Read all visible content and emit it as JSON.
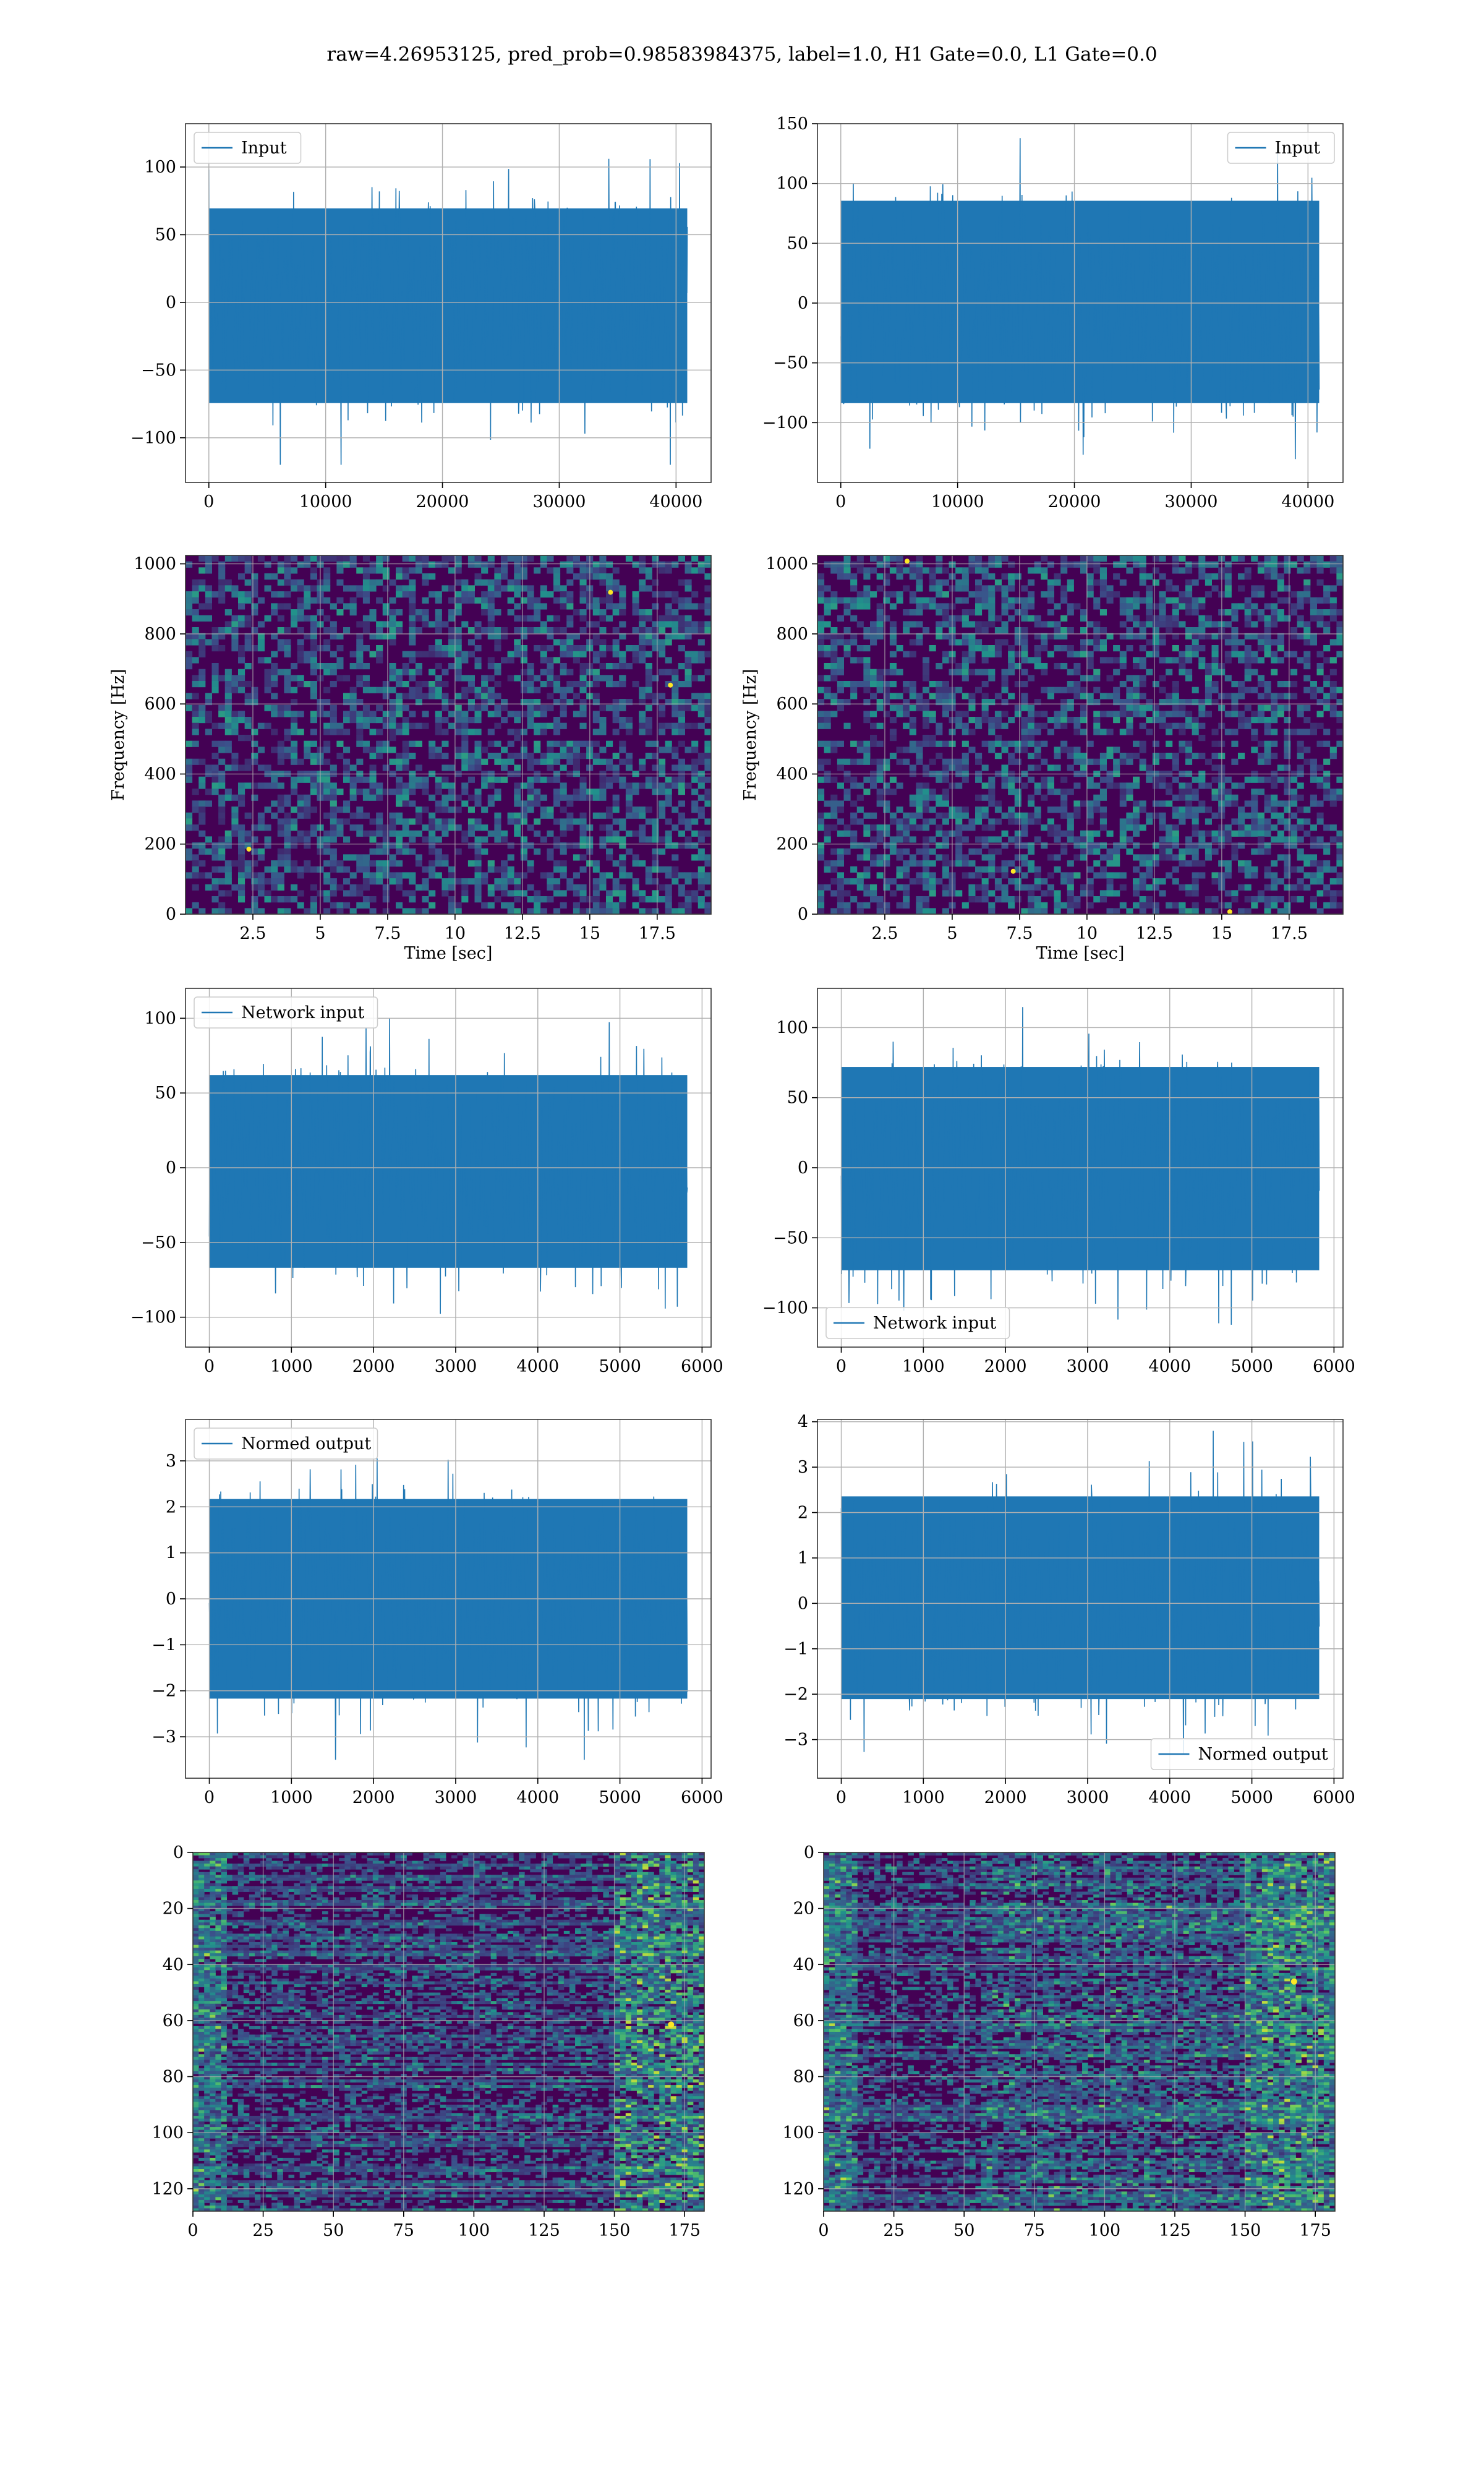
{
  "figure": {
    "title": "raw=4.26953125, pred_prob=0.98583984375, label=1.0, H1 Gate=0.0, L1 Gate=0.0"
  },
  "colors": {
    "series": "#1f77b4",
    "grid": "#b0b0b0",
    "viridis_low": "#440154",
    "viridis_mid": "#21918c",
    "viridis_high": "#fde725"
  },
  "chart_data": [
    {
      "id": "input-h1",
      "type": "line",
      "row": 0,
      "col": 0,
      "series": [
        {
          "name": "Input",
          "x_range": [
            0,
            40960
          ],
          "y_range": [
            -120,
            112
          ]
        }
      ],
      "xlim": [
        -2000,
        43000
      ],
      "ylim": [
        -133,
        132
      ],
      "xticks": [
        0,
        10000,
        20000,
        30000,
        40000
      ],
      "yticks": [
        -100,
        -50,
        0,
        50,
        100
      ],
      "xlabel": "",
      "ylabel": "",
      "legend": "upper left",
      "grid": true
    },
    {
      "id": "input-l1",
      "type": "line",
      "row": 0,
      "col": 1,
      "series": [
        {
          "name": "Input",
          "x_range": [
            0,
            40960
          ],
          "y_range": [
            -135,
            138
          ]
        }
      ],
      "xlim": [
        -2000,
        43000
      ],
      "ylim": [
        -150,
        150
      ],
      "xticks": [
        0,
        10000,
        20000,
        30000,
        40000
      ],
      "yticks": [
        -100,
        -50,
        0,
        50,
        100,
        150
      ],
      "xlabel": "",
      "ylabel": "",
      "legend": "upper right",
      "grid": true
    },
    {
      "id": "spec-h1",
      "type": "heatmap",
      "row": 1,
      "col": 0,
      "xlim": [
        0,
        19.5
      ],
      "ylim": [
        0,
        1024
      ],
      "xticks": [
        2.5,
        5.0,
        7.5,
        10.0,
        12.5,
        15.0,
        17.5
      ],
      "yticks": [
        0,
        200,
        400,
        600,
        800,
        1000
      ],
      "xlabel": "Time [sec]",
      "ylabel": "Frequency [Hz]",
      "colormap": "viridis",
      "grid": true
    },
    {
      "id": "spec-l1",
      "type": "heatmap",
      "row": 1,
      "col": 1,
      "xlim": [
        0,
        19.5
      ],
      "ylim": [
        0,
        1024
      ],
      "xticks": [
        2.5,
        5.0,
        7.5,
        10.0,
        12.5,
        15.0,
        17.5
      ],
      "yticks": [
        0,
        200,
        400,
        600,
        800,
        1000
      ],
      "xlabel": "Time [sec]",
      "ylabel": "Frequency [Hz]",
      "colormap": "viridis",
      "grid": true
    },
    {
      "id": "netin-h1",
      "type": "line",
      "row": 2,
      "col": 0,
      "series": [
        {
          "name": "Network input",
          "x_range": [
            0,
            5820
          ],
          "y_range": [
            -108,
            100
          ]
        }
      ],
      "xlim": [
        -290,
        6110
      ],
      "ylim": [
        -120,
        120
      ],
      "xticks": [
        0,
        1000,
        2000,
        3000,
        4000,
        5000,
        6000
      ],
      "yticks": [
        -100,
        -50,
        0,
        50,
        100
      ],
      "xlabel": "",
      "ylabel": "",
      "legend": "upper left",
      "grid": true
    },
    {
      "id": "netin-l1",
      "type": "line",
      "row": 2,
      "col": 1,
      "series": [
        {
          "name": "Network input",
          "x_range": [
            0,
            5820
          ],
          "y_range": [
            -118,
            116
          ]
        }
      ],
      "xlim": [
        -290,
        6110
      ],
      "ylim": [
        -128,
        128
      ],
      "xticks": [
        0,
        1000,
        2000,
        3000,
        4000,
        5000,
        6000
      ],
      "yticks": [
        -100,
        -50,
        0,
        50,
        100
      ],
      "xlabel": "",
      "ylabel": "",
      "legend": "lower left",
      "grid": true
    },
    {
      "id": "normout-h1",
      "type": "line",
      "row": 3,
      "col": 0,
      "series": [
        {
          "name": "Normed output",
          "x_range": [
            0,
            5820
          ],
          "y_range": [
            -3.5,
            3.5
          ]
        }
      ],
      "xlim": [
        -290,
        6110
      ],
      "ylim": [
        -3.9,
        3.9
      ],
      "xticks": [
        0,
        1000,
        2000,
        3000,
        4000,
        5000,
        6000
      ],
      "yticks": [
        -3,
        -2,
        -1,
        0,
        1,
        2,
        3
      ],
      "xlabel": "",
      "ylabel": "",
      "legend": "upper left",
      "grid": true
    },
    {
      "id": "normout-l1",
      "type": "line",
      "row": 3,
      "col": 1,
      "series": [
        {
          "name": "Normed output",
          "x_range": [
            0,
            5820
          ],
          "y_range": [
            -3.4,
            3.8
          ]
        }
      ],
      "xlim": [
        -290,
        6110
      ],
      "ylim": [
        -3.85,
        4.05
      ],
      "xticks": [
        0,
        1000,
        2000,
        3000,
        4000,
        5000,
        6000
      ],
      "yticks": [
        -3,
        -2,
        -1,
        0,
        1,
        2,
        3,
        4
      ],
      "xlabel": "",
      "ylabel": "",
      "legend": "lower right",
      "grid": true
    },
    {
      "id": "emb-h1",
      "type": "heatmap",
      "row": 4,
      "col": 0,
      "xlim": [
        0,
        182
      ],
      "ylim": [
        0,
        128
      ],
      "y_inverted": true,
      "xticks": [
        0,
        25,
        50,
        75,
        100,
        125,
        150,
        175
      ],
      "yticks": [
        0,
        20,
        40,
        60,
        80,
        100,
        120
      ],
      "xlabel": "",
      "ylabel": "",
      "colormap": "viridis",
      "grid": true
    },
    {
      "id": "emb-l1",
      "type": "heatmap",
      "row": 4,
      "col": 1,
      "xlim": [
        0,
        182
      ],
      "ylim": [
        0,
        128
      ],
      "y_inverted": true,
      "xticks": [
        0,
        25,
        50,
        75,
        100,
        125,
        150,
        175
      ],
      "yticks": [
        0,
        20,
        40,
        60,
        80,
        100,
        120
      ],
      "xlabel": "",
      "ylabel": "",
      "colormap": "viridis",
      "grid": true
    }
  ]
}
